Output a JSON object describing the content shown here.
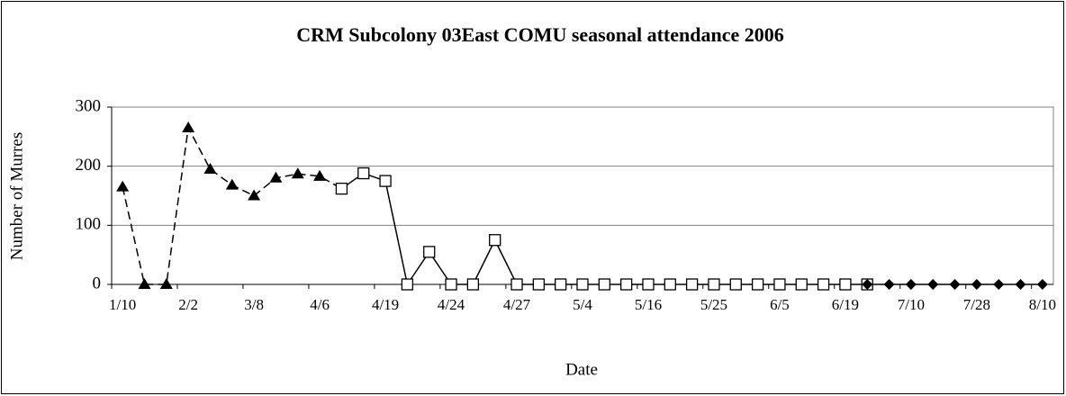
{
  "chart_data": {
    "type": "line",
    "title": "CRM Subcolony 03East COMU seasonal attendance 2006",
    "xlabel": "Date",
    "ylabel": "Number of Murres",
    "categories": [
      "1/10",
      null,
      null,
      "2/2",
      null,
      null,
      "3/8",
      null,
      null,
      "4/6",
      null,
      null,
      "4/19",
      null,
      null,
      "4/24",
      null,
      null,
      "4/27",
      null,
      null,
      "5/4",
      null,
      null,
      "5/16",
      null,
      null,
      "5/25",
      null,
      null,
      "6/5",
      null,
      null,
      "6/19",
      null,
      null,
      "7/10",
      null,
      null,
      "7/28",
      null,
      null,
      "8/10"
    ],
    "series": [
      {
        "marker": "triangle",
        "dashed": true,
        "color": "#000000",
        "values": [
          165,
          0,
          0,
          265,
          195,
          168,
          150,
          180,
          187,
          183,
          162,
          null,
          null,
          null,
          null,
          null,
          null,
          null,
          null,
          null,
          null,
          null,
          null,
          null,
          null,
          null,
          null,
          null,
          null,
          null,
          null,
          null,
          null,
          null,
          null,
          null,
          null,
          null,
          null,
          null,
          null,
          null,
          null
        ]
      },
      {
        "marker": "square",
        "dashed": false,
        "color": "#000000",
        "values": [
          null,
          null,
          null,
          null,
          null,
          null,
          null,
          null,
          null,
          null,
          162,
          188,
          175,
          0,
          55,
          0,
          0,
          75,
          0,
          0,
          0,
          0,
          0,
          0,
          0,
          0,
          0,
          0,
          0,
          0,
          0,
          0,
          0,
          0,
          0,
          null,
          null,
          null,
          null,
          null,
          null,
          null,
          null
        ]
      },
      {
        "marker": "diamond",
        "dashed": false,
        "color": "#000000",
        "values": [
          null,
          null,
          null,
          null,
          null,
          null,
          null,
          null,
          null,
          null,
          null,
          null,
          null,
          null,
          null,
          null,
          null,
          null,
          null,
          null,
          null,
          null,
          null,
          null,
          null,
          null,
          null,
          null,
          null,
          null,
          null,
          null,
          null,
          null,
          0,
          0,
          0,
          0,
          0,
          0,
          0,
          0,
          0
        ]
      }
    ],
    "ylim": [
      0,
      300
    ],
    "yticks": [
      0,
      100,
      200,
      300
    ],
    "grid": true
  }
}
